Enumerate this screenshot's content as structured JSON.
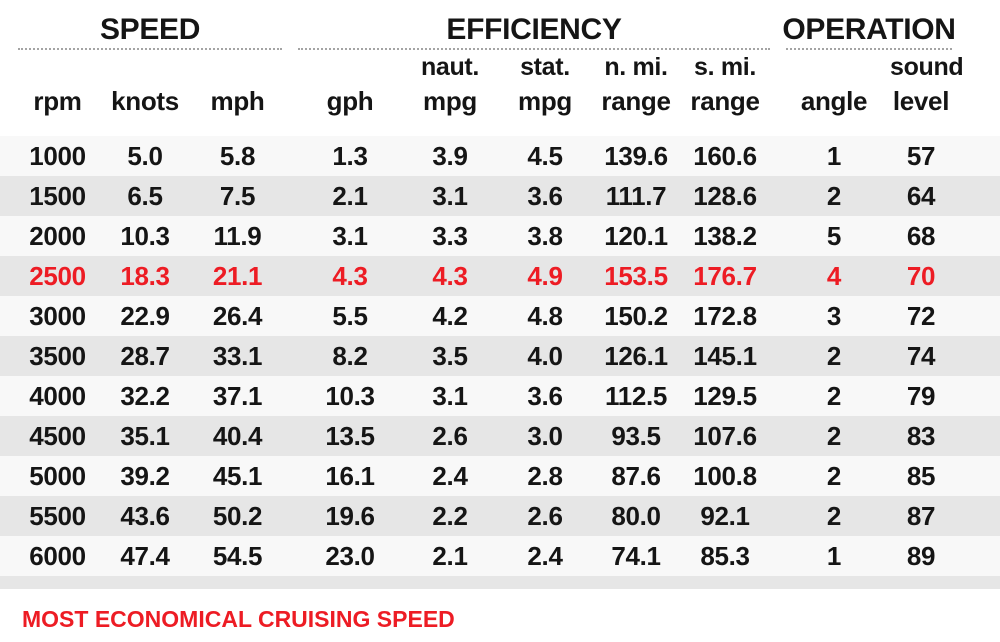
{
  "colors": {
    "highlight_red": "#ed1c24",
    "stripe_gray": "#e6e6e6",
    "text_black": "#151515"
  },
  "table": {
    "groups": [
      {
        "label": "SPEED"
      },
      {
        "label": "EFFICIENCY"
      },
      {
        "label": "OPERATION"
      }
    ],
    "sub_headers": [
      "",
      "",
      "",
      "",
      "naut.",
      "stat.",
      "n. mi.",
      "s. mi.",
      "",
      "sound"
    ],
    "columns": [
      "rpm",
      "knots",
      "mph",
      "gph",
      "mpg",
      "mpg",
      "range",
      "range",
      "angle",
      "level"
    ],
    "rows": [
      {
        "highlight": false,
        "values": [
          "1000",
          "5.0",
          "5.8",
          "1.3",
          "3.9",
          "4.5",
          "139.6",
          "160.6",
          "1",
          "57"
        ]
      },
      {
        "highlight": false,
        "values": [
          "1500",
          "6.5",
          "7.5",
          "2.1",
          "3.1",
          "3.6",
          "111.7",
          "128.6",
          "2",
          "64"
        ]
      },
      {
        "highlight": false,
        "values": [
          "2000",
          "10.3",
          "11.9",
          "3.1",
          "3.3",
          "3.8",
          "120.1",
          "138.2",
          "5",
          "68"
        ]
      },
      {
        "highlight": true,
        "values": [
          "2500",
          "18.3",
          "21.1",
          "4.3",
          "4.3",
          "4.9",
          "153.5",
          "176.7",
          "4",
          "70"
        ]
      },
      {
        "highlight": false,
        "values": [
          "3000",
          "22.9",
          "26.4",
          "5.5",
          "4.2",
          "4.8",
          "150.2",
          "172.8",
          "3",
          "72"
        ]
      },
      {
        "highlight": false,
        "values": [
          "3500",
          "28.7",
          "33.1",
          "8.2",
          "3.5",
          "4.0",
          "126.1",
          "145.1",
          "2",
          "74"
        ]
      },
      {
        "highlight": false,
        "values": [
          "4000",
          "32.2",
          "37.1",
          "10.3",
          "3.1",
          "3.6",
          "112.5",
          "129.5",
          "2",
          "79"
        ]
      },
      {
        "highlight": false,
        "values": [
          "4500",
          "35.1",
          "40.4",
          "13.5",
          "2.6",
          "3.0",
          "93.5",
          "107.6",
          "2",
          "83"
        ]
      },
      {
        "highlight": false,
        "values": [
          "5000",
          "39.2",
          "45.1",
          "16.1",
          "2.4",
          "2.8",
          "87.6",
          "100.8",
          "2",
          "85"
        ]
      },
      {
        "highlight": false,
        "values": [
          "5500",
          "43.6",
          "50.2",
          "19.6",
          "2.2",
          "2.6",
          "80.0",
          "92.1",
          "2",
          "87"
        ]
      },
      {
        "highlight": false,
        "values": [
          "6000",
          "47.4",
          "54.5",
          "23.0",
          "2.1",
          "2.4",
          "74.1",
          "85.3",
          "1",
          "89"
        ]
      }
    ],
    "footer": "MOST ECONOMICAL CRUISING SPEED"
  },
  "chart_data": {
    "type": "table",
    "title": "",
    "column_groups": [
      {
        "label": "SPEED",
        "columns": [
          "rpm",
          "knots",
          "mph"
        ]
      },
      {
        "label": "EFFICIENCY",
        "columns": [
          "gph",
          "naut. mpg",
          "stat. mpg",
          "n. mi. range",
          "s. mi. range"
        ]
      },
      {
        "label": "OPERATION",
        "columns": [
          "angle",
          "sound level"
        ]
      }
    ],
    "rows": [
      [
        1000,
        5.0,
        5.8,
        1.3,
        3.9,
        4.5,
        139.6,
        160.6,
        1,
        57
      ],
      [
        1500,
        6.5,
        7.5,
        2.1,
        3.1,
        3.6,
        111.7,
        128.6,
        2,
        64
      ],
      [
        2000,
        10.3,
        11.9,
        3.1,
        3.3,
        3.8,
        120.1,
        138.2,
        5,
        68
      ],
      [
        2500,
        18.3,
        21.1,
        4.3,
        4.3,
        4.9,
        153.5,
        176.7,
        4,
        70
      ],
      [
        3000,
        22.9,
        26.4,
        5.5,
        4.2,
        4.8,
        150.2,
        172.8,
        3,
        72
      ],
      [
        3500,
        28.7,
        33.1,
        8.2,
        3.5,
        4.0,
        126.1,
        145.1,
        2,
        74
      ],
      [
        4000,
        32.2,
        37.1,
        10.3,
        3.1,
        3.6,
        112.5,
        129.5,
        2,
        79
      ],
      [
        4500,
        35.1,
        40.4,
        13.5,
        2.6,
        3.0,
        93.5,
        107.6,
        2,
        83
      ],
      [
        5000,
        39.2,
        45.1,
        16.1,
        2.4,
        2.8,
        87.6,
        100.8,
        2,
        85
      ],
      [
        5500,
        43.6,
        50.2,
        19.6,
        2.2,
        2.6,
        80.0,
        92.1,
        2,
        87
      ],
      [
        6000,
        47.4,
        54.5,
        23.0,
        2.1,
        2.4,
        74.1,
        85.3,
        1,
        89
      ]
    ],
    "highlighted_row_rpm": 2500,
    "highlight_legend": "MOST ECONOMICAL CRUISING SPEED"
  }
}
